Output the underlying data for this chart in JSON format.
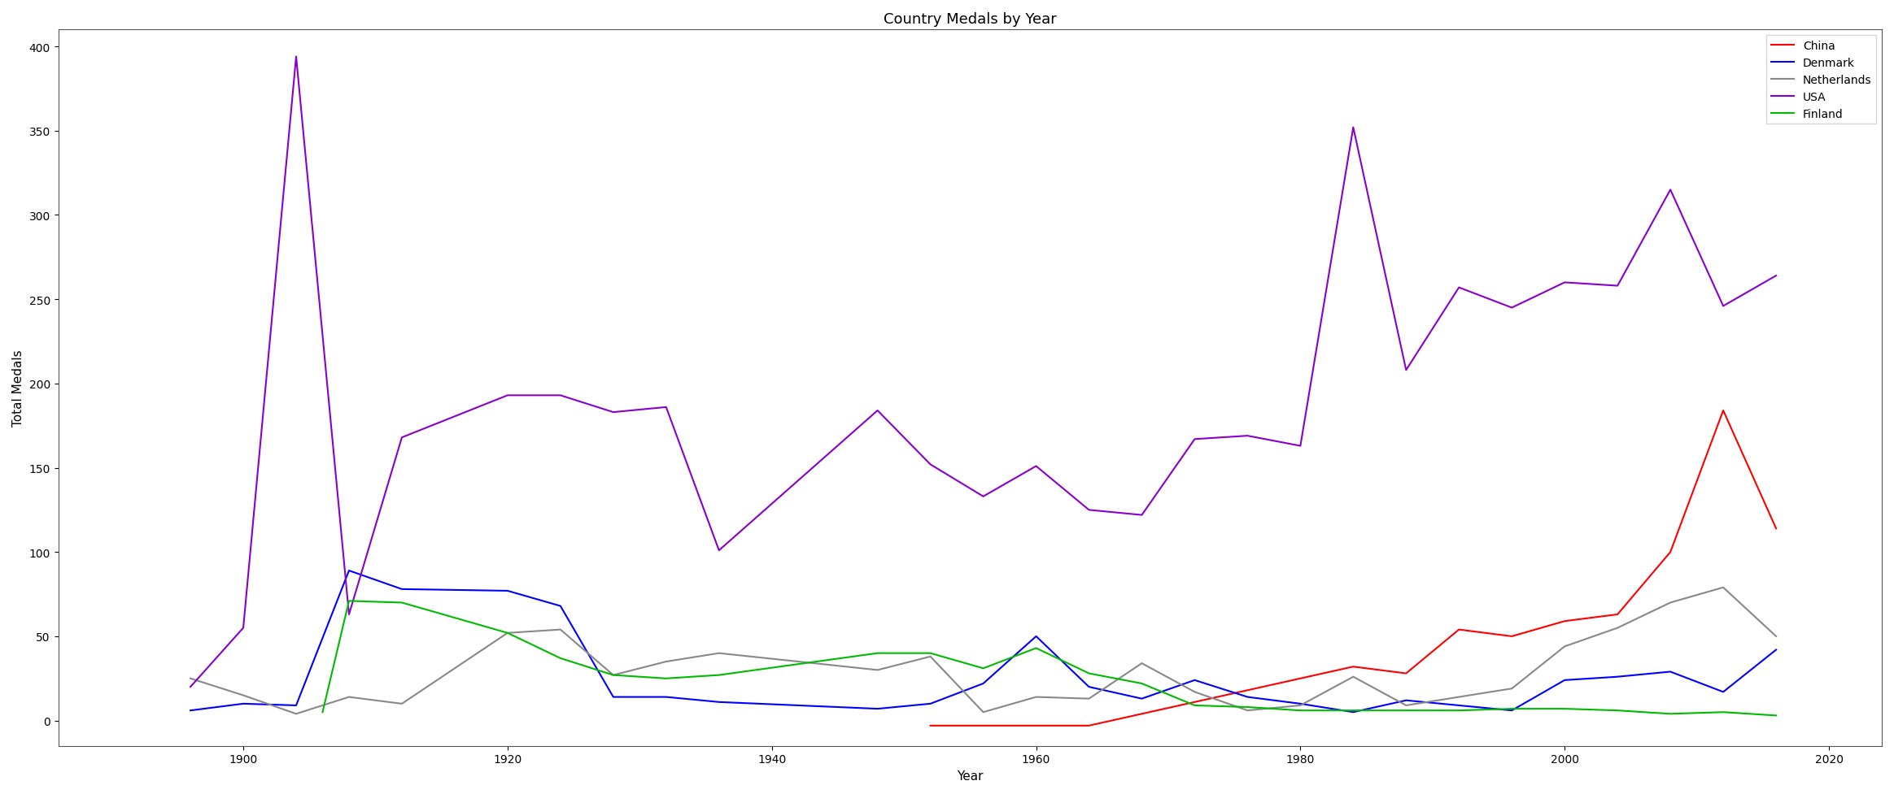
{
  "title": "Country Medals by Year",
  "xlabel": "Year",
  "ylabel": "Total Medals",
  "countries": {
    "China": {
      "color": "#ff0000",
      "years": [
        1952,
        1956,
        1960,
        1964,
        1984,
        1988,
        1992,
        1996,
        2000,
        2004,
        2008,
        2012,
        2016
      ],
      "values": [
        -3,
        -3,
        -3,
        -3,
        32,
        28,
        54,
        50,
        59,
        63,
        100,
        184,
        114
      ]
    },
    "Denmark": {
      "color": "#0000ff",
      "years": [
        1896,
        1900,
        1904,
        1908,
        1912,
        1920,
        1924,
        1928,
        1932,
        1936,
        1948,
        1952,
        1956,
        1960,
        1964,
        1968,
        1972,
        1976,
        1980,
        1984,
        1988,
        1992,
        1996,
        2000,
        2004,
        2008,
        2012,
        2016
      ],
      "values": [
        6,
        10,
        9,
        89,
        78,
        77,
        68,
        14,
        14,
        11,
        7,
        10,
        22,
        50,
        20,
        13,
        24,
        14,
        10,
        5,
        12,
        9,
        6,
        24,
        26,
        29,
        17,
        42
      ]
    },
    "Netherlands": {
      "color": "#888888",
      "years": [
        1896,
        1900,
        1904,
        1908,
        1912,
        1920,
        1924,
        1928,
        1932,
        1936,
        1948,
        1952,
        1956,
        1960,
        1964,
        1968,
        1972,
        1976,
        1980,
        1984,
        1988,
        1992,
        1996,
        2000,
        2004,
        2008,
        2012,
        2016
      ],
      "values": [
        25,
        15,
        4,
        14,
        10,
        52,
        54,
        27,
        35,
        40,
        30,
        38,
        5,
        14,
        13,
        34,
        17,
        6,
        9,
        26,
        9,
        14,
        19,
        44,
        55,
        70,
        79,
        50
      ]
    },
    "USA": {
      "color": "#8800cc",
      "years": [
        1896,
        1900,
        1904,
        1908,
        1912,
        1920,
        1924,
        1928,
        1932,
        1936,
        1948,
        1952,
        1956,
        1960,
        1964,
        1968,
        1972,
        1976,
        1980,
        1984,
        1988,
        1992,
        1996,
        2000,
        2004,
        2008,
        2012,
        2016
      ],
      "values": [
        20,
        55,
        394,
        63,
        168,
        193,
        193,
        183,
        186,
        101,
        184,
        152,
        133,
        151,
        125,
        122,
        167,
        169,
        163,
        352,
        208,
        257,
        245,
        260,
        258,
        315,
        246,
        264
      ]
    },
    "Finland": {
      "color": "#00bb00",
      "years": [
        1906,
        1908,
        1912,
        1920,
        1924,
        1928,
        1932,
        1936,
        1948,
        1952,
        1956,
        1960,
        1964,
        1968,
        1972,
        1976,
        1980,
        1984,
        1988,
        1992,
        1996,
        2000,
        2004,
        2008,
        2012,
        2016
      ],
      "values": [
        5,
        71,
        70,
        52,
        37,
        27,
        25,
        27,
        40,
        40,
        31,
        43,
        28,
        22,
        9,
        8,
        6,
        6,
        6,
        6,
        7,
        7,
        6,
        4,
        5,
        3
      ]
    }
  },
  "xlim": [
    1886,
    2024
  ],
  "ylim": [
    -15,
    410
  ],
  "figsize": [
    23.28,
    9.78
  ],
  "dpi": 100,
  "legend_order": [
    "China",
    "Denmark",
    "Netherlands",
    "USA",
    "Finland"
  ]
}
